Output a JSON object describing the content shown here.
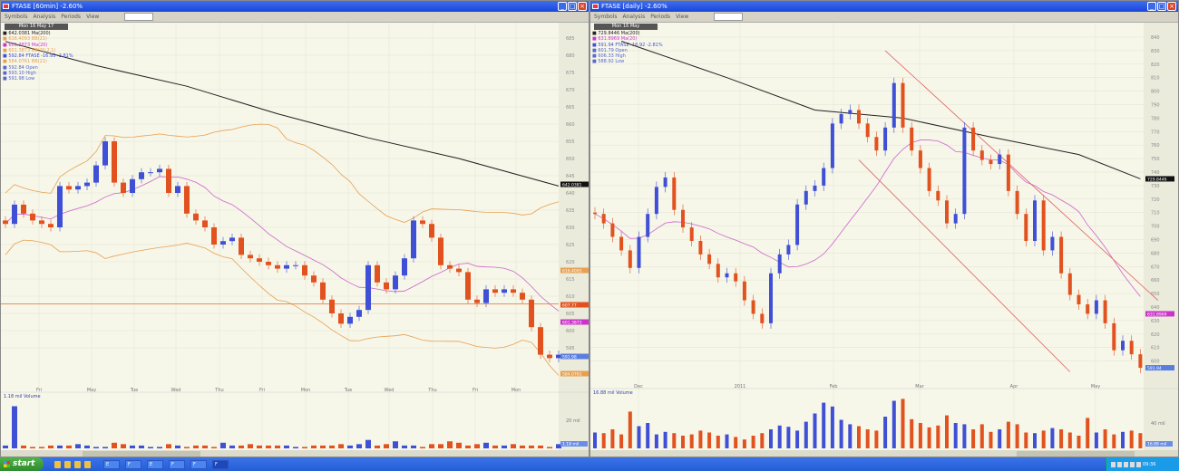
{
  "colors": {
    "up": "#3f4fd6",
    "down": "#e2521f",
    "ma200": "#222222",
    "ma20": "#cc66cc",
    "bb": "#e8a050",
    "channel": "#e06060",
    "hline": "#e07030",
    "bg": "#f6f6e9"
  },
  "toolbar": {
    "items": [
      "Symbols",
      "Analysis",
      "Periods",
      "View"
    ]
  },
  "left": {
    "title": "FTASE [60min] -2.60%",
    "date": "Mon 16 May 17",
    "legend": [
      {
        "text": "642.0381 Ma(200)",
        "color": "#222222"
      },
      {
        "text": "616.4093 BB(21)",
        "color": "#e8a050"
      },
      {
        "text": "601.3873 Ma(20)",
        "color": "#cc33cc"
      },
      {
        "text": "601.3873 BB(20,2,1)",
        "color": "#e8a050"
      },
      {
        "text": "592.84 FTASE  -16.93 -2.81%",
        "color": "#3f4fd6"
      },
      {
        "text": "584.0761 BB(21)",
        "color": "#e8a050"
      },
      {
        "text": "592.84 Open",
        "color": "#5566cc"
      },
      {
        "text": "593.10 High",
        "color": "#5566cc"
      },
      {
        "text": "591.98 Low",
        "color": "#5566cc"
      }
    ],
    "volume_label": "1.18 mil Volume",
    "chart_data": {
      "type": "candlestick",
      "xlabels": [
        "Fri",
        "May",
        "Tue",
        "Wed",
        "Thu",
        "Fri",
        "Mon",
        "Tue",
        "Wed",
        "Thu",
        "Fri",
        "Mon"
      ],
      "yticks": [
        685,
        680,
        675,
        670,
        665,
        660,
        655,
        650,
        645,
        640,
        635,
        630,
        625,
        620,
        615,
        610,
        605,
        600,
        595
      ],
      "ylim": [
        588,
        688
      ],
      "close": [
        631,
        636.6,
        634,
        632,
        631,
        630,
        642,
        641,
        642,
        643,
        648,
        655,
        643,
        640,
        644,
        646,
        646,
        647,
        640,
        642,
        634,
        632,
        630,
        625,
        626,
        627,
        622,
        621,
        620,
        619,
        618,
        619,
        619,
        616,
        614,
        609,
        605,
        602,
        604,
        606,
        619,
        614,
        612,
        616,
        621,
        632,
        631,
        627,
        619,
        618,
        617,
        609,
        608,
        612,
        611,
        612,
        611,
        609,
        601,
        593,
        592,
        593
      ],
      "ma200_points": [
        [
          0,
          684
        ],
        [
          10,
          677
        ],
        [
          20,
          671
        ],
        [
          30,
          663
        ],
        [
          40,
          656
        ],
        [
          50,
          650
        ],
        [
          61,
          642
        ]
      ],
      "hline": 607.77,
      "price_tags": [
        {
          "v": "642.0381",
          "c": "#111111"
        },
        {
          "v": "616.4093",
          "c": "#e8a050"
        },
        {
          "v": "607.77",
          "c": "#e2521f"
        },
        {
          "v": "601.3873",
          "c": "#cc33cc"
        },
        {
          "v": "591.98",
          "c": "#5a7ee0"
        },
        {
          "v": "584.0761",
          "c": "#e8a050"
        }
      ],
      "volume": [
        2,
        30,
        2,
        1,
        1,
        2,
        2,
        2,
        3,
        2,
        1,
        1,
        4,
        3,
        2,
        2,
        1,
        1,
        3,
        2,
        1,
        2,
        2,
        1,
        4,
        2,
        2,
        3,
        2,
        2,
        2,
        2,
        1,
        1,
        2,
        2,
        2,
        3,
        2,
        3,
        6,
        2,
        3,
        5,
        2,
        2,
        1,
        3,
        3,
        5,
        4,
        2,
        3,
        4,
        2,
        2,
        3,
        2,
        2,
        2,
        1,
        3
      ],
      "volume_axis": "20 mil",
      "volume_tag": "1.18 mil"
    }
  },
  "right": {
    "title": "FTASE [daily] -2.60%",
    "date": "Mon 16 May",
    "legend": [
      {
        "text": "729.8446 Ma(200)",
        "color": "#222222"
      },
      {
        "text": "631.8969 Ma(20)",
        "color": "#cc33cc"
      },
      {
        "text": "591.94 FTASE  -16.92 -2.81%",
        "color": "#3f4fd6"
      },
      {
        "text": "601.79 Open",
        "color": "#5566cc"
      },
      {
        "text": "606.33 High",
        "color": "#5566cc"
      },
      {
        "text": "588.92 Low",
        "color": "#5566cc"
      }
    ],
    "volume_label": "16.88 mil Volume",
    "chart_data": {
      "type": "candlestick",
      "xlabels": [
        "Dec",
        "2011",
        "Feb",
        "Mar",
        "Apr",
        "May"
      ],
      "yticks": [
        840,
        830,
        820,
        810,
        800,
        790,
        780,
        770,
        760,
        750,
        740,
        730,
        720,
        710,
        700,
        690,
        680,
        670,
        660,
        650,
        640,
        630,
        620,
        610,
        600
      ],
      "ylim": [
        585,
        845
      ],
      "close": [
        709,
        702,
        692,
        682,
        669,
        692,
        709,
        729,
        736,
        712,
        699,
        689,
        679,
        672,
        662,
        665,
        659,
        645,
        635,
        628,
        665,
        679,
        686,
        716,
        726,
        730,
        743,
        776,
        783,
        786,
        776,
        766,
        756,
        773,
        806,
        773,
        756,
        743,
        726,
        719,
        702,
        709,
        773,
        756,
        749,
        746,
        753,
        726,
        709,
        689,
        719,
        682,
        692,
        665,
        649,
        642,
        635,
        645,
        628,
        608,
        615,
        605,
        595
      ],
      "ma200_points": [
        [
          3,
          837
        ],
        [
          15,
          810
        ],
        [
          25,
          786
        ],
        [
          35,
          780
        ],
        [
          45,
          766
        ],
        [
          55,
          753
        ],
        [
          62,
          735
        ]
      ],
      "channel": [
        [
          [
            33,
            830
          ],
          [
            64,
            645
          ]
        ],
        [
          [
            30,
            749
          ],
          [
            54,
            592
          ]
        ]
      ],
      "price_tags": [
        {
          "v": "729.8446",
          "c": "#111111"
        },
        {
          "v": "631.8969",
          "c": "#cc33cc"
        },
        {
          "v": "591.94",
          "c": "#5a7ee0"
        }
      ],
      "volume": [
        25,
        24,
        30,
        22,
        58,
        35,
        40,
        22,
        26,
        24,
        20,
        22,
        28,
        25,
        20,
        22,
        18,
        14,
        20,
        24,
        30,
        36,
        34,
        28,
        42,
        55,
        72,
        66,
        45,
        38,
        35,
        30,
        28,
        50,
        75,
        78,
        46,
        40,
        33,
        36,
        52,
        40,
        38,
        30,
        38,
        26,
        30,
        42,
        38,
        25,
        24,
        28,
        32,
        30,
        25,
        20,
        48,
        25,
        30,
        22,
        26,
        28,
        24
      ],
      "volume_axis": "40 mil",
      "volume_tag": "16.88 mil"
    }
  },
  "taskbar": {
    "start": "start",
    "tasks": [
      "E",
      "F",
      "E",
      "F",
      "F",
      "F"
    ],
    "clock": "09:36"
  }
}
